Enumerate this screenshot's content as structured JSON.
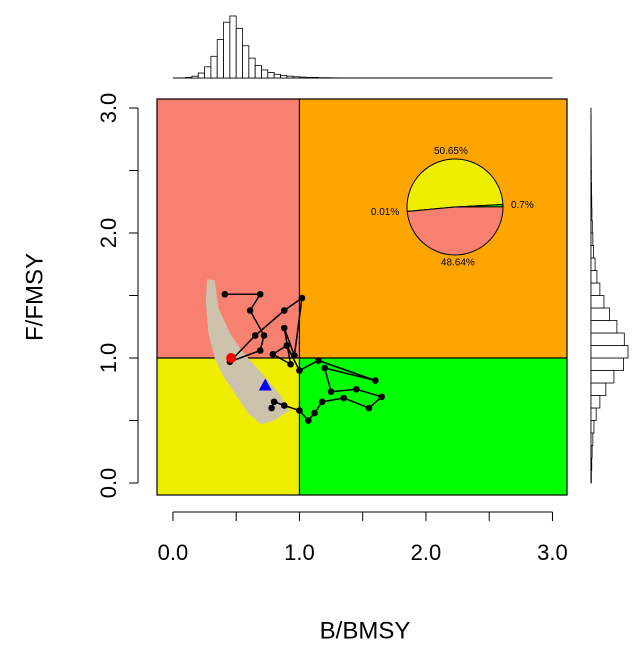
{
  "chart_data": [
    {
      "type": "kobe",
      "xlabel": "B/BMSY",
      "ylabel": "F/FMSY",
      "xlim": [
        -0.126,
        3.115
      ],
      "ylim": [
        -0.096,
        3.072
      ],
      "xticks": [
        {
          "value": 0,
          "label": "0.0"
        },
        {
          "value": 1,
          "label": "1.0"
        },
        {
          "value": 2,
          "label": "2.0"
        },
        {
          "value": 3,
          "label": "3.0"
        }
      ],
      "yticks": [
        {
          "value": 0,
          "label": "0.0"
        },
        {
          "value": 1,
          "label": "1.0"
        },
        {
          "value": 2,
          "label": "2.0"
        },
        {
          "value": 3,
          "label": "3.0"
        }
      ],
      "xminor_ticks": [
        0.5,
        1.5,
        2.5
      ],
      "yminor_ticks": [
        0.5,
        1.5,
        2.5
      ],
      "xref": 1,
      "yref": 1,
      "quadrant_colors": {
        "upper_left": "#f88070",
        "upper_right": "#ffa500",
        "lower_left": "#eeee00",
        "lower_right": "#00ff00"
      },
      "region": {
        "color": "#cdc3ac",
        "x": [
          0.27,
          0.33,
          0.36,
          0.45,
          0.55,
          0.7,
          0.85,
          0.92,
          0.8,
          0.7,
          0.6,
          0.5,
          0.4,
          0.33,
          0.28,
          0.26
        ],
        "y": [
          1.63,
          1.62,
          1.4,
          1.2,
          1.05,
          0.88,
          0.7,
          0.58,
          0.5,
          0.47,
          0.55,
          0.7,
          0.85,
          1.0,
          1.2,
          1.45
        ]
      },
      "series": [
        {
          "color": "#000000",
          "x": [
            0.41,
            0.69,
            0.61,
            0.72,
            0.69,
            0.45,
            0.65,
            0.88,
            1.02,
            0.96,
            0.88,
            0.93,
            0.79,
            0.9,
            1.0,
            1.15,
            1.6,
            1.2,
            1.25,
            1.45,
            1.65,
            1.55,
            1.35,
            1.18,
            1.12,
            1.07,
            1.0,
            0.88,
            0.8,
            0.78
          ],
          "y": [
            1.51,
            1.51,
            1.38,
            1.18,
            1.06,
            0.97,
            1.18,
            1.38,
            1.48,
            1.02,
            1.24,
            0.95,
            1.03,
            1.1,
            0.9,
            0.98,
            0.82,
            0.92,
            0.73,
            0.75,
            0.69,
            0.6,
            0.68,
            0.65,
            0.56,
            0.5,
            0.58,
            0.62,
            0.65,
            0.6
          ]
        }
      ],
      "markers": [
        {
          "x": 0.46,
          "y": 1.0,
          "color": "#ff0000",
          "shape": "circle"
        },
        {
          "x": 0.73,
          "y": 0.78,
          "color": "#0000ff",
          "shape": "triangle"
        }
      ]
    },
    {
      "type": "pie",
      "values": [
        50.65,
        0.01,
        48.64,
        0.7
      ],
      "value_labels": [
        "50.65%",
        "0.01%",
        "48.64%",
        "0.7%"
      ],
      "colors": [
        "#eeee00",
        "#ffa500",
        "#f88070",
        "#00ff00"
      ]
    },
    {
      "type": "histogram",
      "orientation": "vertical",
      "bins": [
        0,
        0.05,
        0.1,
        0.15,
        0.2,
        0.25,
        0.3,
        0.35,
        0.4,
        0.45,
        0.5,
        0.55,
        0.6,
        0.65,
        0.7,
        0.75,
        0.8,
        0.85,
        0.9,
        0.95,
        1.0,
        1.05,
        1.1,
        1.15,
        1.2,
        1.25,
        1.3,
        1.35,
        1.4,
        1.45,
        1.5
      ],
      "counts": [
        0,
        0,
        1,
        3,
        8,
        18,
        35,
        62,
        90,
        100,
        80,
        52,
        32,
        20,
        13,
        9,
        6,
        4,
        3,
        2,
        1.5,
        1,
        1,
        0.5,
        0.5,
        0.3,
        0.2,
        0.1,
        0,
        0
      ]
    },
    {
      "type": "histogram",
      "orientation": "horizontal",
      "bins": [
        0,
        0.1,
        0.2,
        0.3,
        0.4,
        0.5,
        0.6,
        0.7,
        0.8,
        0.9,
        1.0,
        1.1,
        1.2,
        1.3,
        1.4,
        1.5,
        1.6,
        1.7,
        1.8,
        1.9,
        2.0,
        2.1,
        2.2,
        2.3,
        2.4,
        2.5,
        2.6,
        2.7,
        2.8,
        2.9,
        3.0
      ],
      "counts": [
        1,
        2,
        3,
        5,
        8,
        14,
        24,
        40,
        62,
        88,
        100,
        90,
        70,
        50,
        35,
        24,
        16,
        11,
        7,
        5,
        3.5,
        2.5,
        2,
        1.5,
        1,
        0.8,
        0.6,
        0.4,
        0.3,
        0.2
      ]
    }
  ]
}
